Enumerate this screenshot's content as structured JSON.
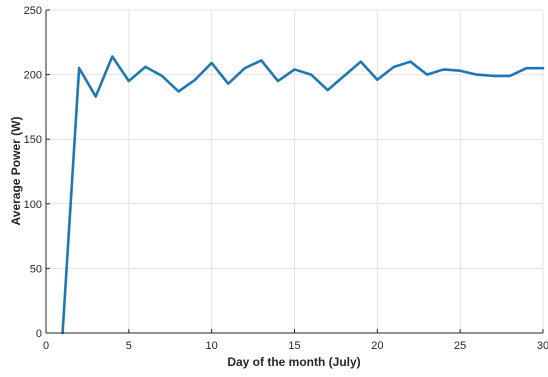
{
  "chart_data": {
    "type": "line",
    "title": "",
    "xlabel": "Day of the month (July)",
    "ylabel": "Average Power (W)",
    "xlim": [
      0,
      30
    ],
    "ylim": [
      0,
      250
    ],
    "x_ticks": [
      0,
      5,
      10,
      15,
      20,
      25,
      30
    ],
    "y_ticks": [
      0,
      50,
      100,
      150,
      200,
      250
    ],
    "grid": true,
    "colors": {
      "line": "#1f77b4",
      "grid": "#e3e3e3",
      "axis": "#262626"
    },
    "series": [
      {
        "x": [
          1,
          2,
          3,
          4,
          5,
          6,
          7,
          8,
          9,
          10,
          11,
          12,
          13,
          14,
          15,
          16,
          17,
          18,
          19,
          20,
          21,
          22,
          23,
          24,
          25,
          26,
          27,
          28,
          29,
          30
        ],
        "values": [
          0,
          205,
          183,
          214,
          195,
          206,
          199,
          187,
          196,
          209,
          193,
          205,
          211,
          195,
          204,
          200,
          188,
          199,
          210,
          196,
          206,
          210,
          200,
          204,
          203,
          200,
          199,
          199,
          205,
          205
        ]
      }
    ]
  }
}
